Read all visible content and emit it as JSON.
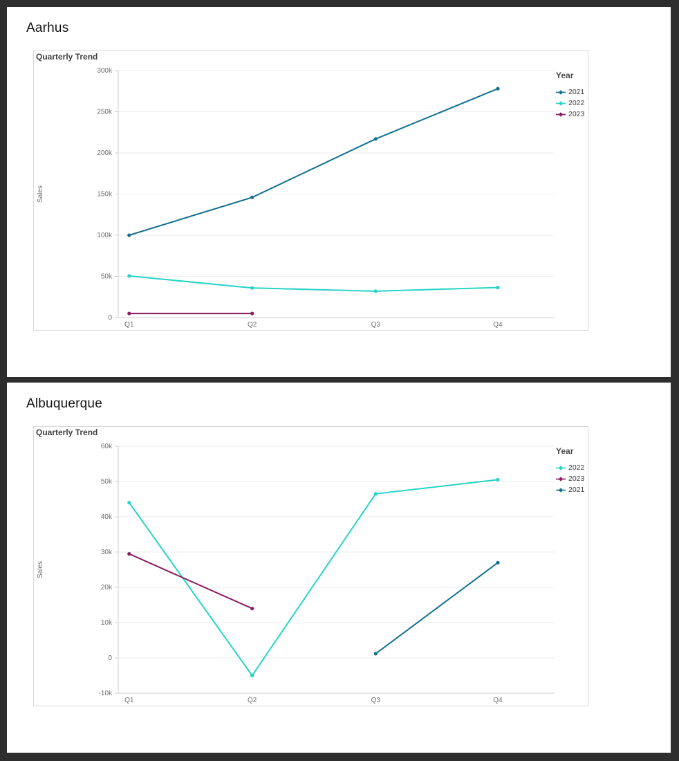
{
  "page": {
    "background": "#2e2e2e",
    "panel_background": "#ffffff"
  },
  "chart_data": [
    {
      "type": "line",
      "panel_title": "Aarhus",
      "title": "Quarterly Trend",
      "xlabel": "",
      "ylabel": "Sales",
      "categories": [
        "Q1",
        "Q2",
        "Q3",
        "Q4"
      ],
      "legend_title": "Year",
      "legend_position": "right",
      "grid": true,
      "ylim": [
        0,
        300000
      ],
      "yticks": [
        {
          "value": 0,
          "label": "0"
        },
        {
          "value": 50000,
          "label": "50k"
        },
        {
          "value": 100000,
          "label": "100k"
        },
        {
          "value": 150000,
          "label": "150k"
        },
        {
          "value": 200000,
          "label": "200k"
        },
        {
          "value": 250000,
          "label": "250k"
        },
        {
          "value": 300000,
          "label": "300k"
        }
      ],
      "series": [
        {
          "name": "2021",
          "color": "#11708e",
          "values": [
            100000,
            146000,
            217000,
            278000
          ]
        },
        {
          "name": "2022",
          "color": "#25d4c8",
          "values": [
            50500,
            36000,
            32000,
            36500
          ]
        },
        {
          "name": "2023",
          "color": "#8c1c60",
          "values": [
            5000,
            5000,
            null,
            null
          ]
        }
      ]
    },
    {
      "type": "line",
      "panel_title": "Albuquerque",
      "title": "Quarterly Trend",
      "xlabel": "",
      "ylabel": "Sales",
      "categories": [
        "Q1",
        "Q2",
        "Q3",
        "Q4"
      ],
      "legend_title": "Year",
      "legend_position": "right",
      "grid": true,
      "ylim": [
        -10000,
        60000
      ],
      "yticks": [
        {
          "value": -10000,
          "label": "-10k"
        },
        {
          "value": 0,
          "label": "0"
        },
        {
          "value": 10000,
          "label": "10k"
        },
        {
          "value": 20000,
          "label": "20k"
        },
        {
          "value": 30000,
          "label": "30k"
        },
        {
          "value": 40000,
          "label": "40k"
        },
        {
          "value": 50000,
          "label": "50k"
        },
        {
          "value": 60000,
          "label": "60k"
        }
      ],
      "series": [
        {
          "name": "2022",
          "color": "#25d4c8",
          "values": [
            44000,
            -5000,
            46500,
            50500
          ]
        },
        {
          "name": "2023",
          "color": "#8c1c60",
          "values": [
            29500,
            14000,
            null,
            null
          ]
        },
        {
          "name": "2021",
          "color": "#11708e",
          "values": [
            null,
            null,
            1200,
            27000
          ]
        }
      ]
    }
  ]
}
